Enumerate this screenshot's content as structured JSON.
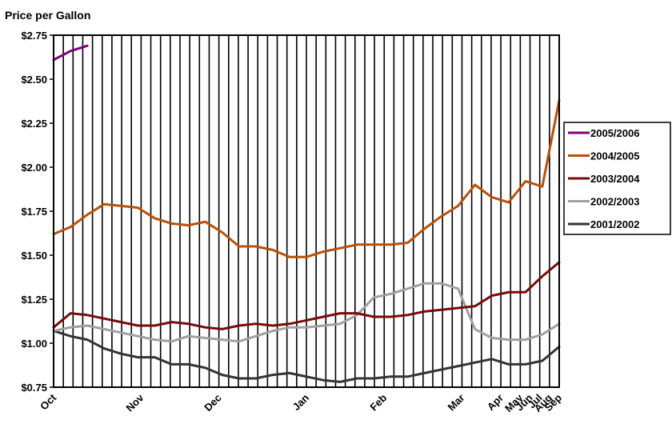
{
  "chart_data": {
    "type": "line",
    "title": "",
    "ylabel": "Price per Gallon",
    "xlabel": "",
    "ylim": [
      0.75,
      2.75
    ],
    "yticks": [
      "$0.75",
      "$1.00",
      "$1.25",
      "$1.50",
      "$1.75",
      "$2.00",
      "$2.25",
      "$2.50",
      "$2.75"
    ],
    "yticks_values": [
      0.75,
      1.0,
      1.25,
      1.5,
      1.75,
      2.0,
      2.25,
      2.5,
      2.75
    ],
    "x_weeks": 52,
    "x_tick_labels": [
      {
        "label": "Oct",
        "week": 0
      },
      {
        "label": "Nov",
        "week": 9
      },
      {
        "label": "Dec",
        "week": 17
      },
      {
        "label": "Jan",
        "week": 26
      },
      {
        "label": "Feb",
        "week": 34
      },
      {
        "label": "Mar",
        "week": 42
      },
      {
        "label": "Apr",
        "week": 46
      },
      {
        "label": "May",
        "week": 48
      },
      {
        "label": "Jun",
        "week": 49
      },
      {
        "label": "Jul",
        "week": 50
      },
      {
        "label": "Aug",
        "week": 51
      },
      {
        "label": "Sep",
        "week": 52
      }
    ],
    "grid": "vertical",
    "legend_position": "right",
    "series": [
      {
        "name": "2005/2006",
        "color": "#800080",
        "values": [
          2.61,
          2.66,
          2.69
        ]
      },
      {
        "name": "2004/2005",
        "color": "#B8510A",
        "values": [
          1.62,
          1.66,
          1.73,
          1.79,
          1.78,
          1.77,
          1.71,
          1.68,
          1.67,
          1.69,
          1.63,
          1.55,
          1.55,
          1.53,
          1.49,
          1.49,
          1.52,
          1.54,
          1.56,
          1.56,
          1.56,
          1.57,
          1.65,
          1.72,
          1.78,
          1.9,
          1.83,
          1.8,
          1.92,
          1.89,
          2.38
        ]
      },
      {
        "name": "2003/2004",
        "color": "#7A0A0A",
        "values": [
          1.09,
          1.17,
          1.16,
          1.14,
          1.12,
          1.1,
          1.1,
          1.12,
          1.11,
          1.09,
          1.08,
          1.1,
          1.11,
          1.1,
          1.11,
          1.13,
          1.15,
          1.17,
          1.17,
          1.15,
          1.15,
          1.16,
          1.18,
          1.19,
          1.2,
          1.21,
          1.27,
          1.29,
          1.29,
          1.38,
          1.46
        ]
      },
      {
        "name": "2002/2003",
        "color": "#A0A0A0",
        "values": [
          1.07,
          1.09,
          1.1,
          1.08,
          1.06,
          1.04,
          1.02,
          1.01,
          1.04,
          1.03,
          1.02,
          1.01,
          1.04,
          1.07,
          1.09,
          1.09,
          1.1,
          1.11,
          1.16,
          1.26,
          1.28,
          1.31,
          1.34,
          1.34,
          1.31,
          1.08,
          1.03,
          1.02,
          1.02,
          1.05,
          1.11
        ]
      },
      {
        "name": "2001/2002",
        "color": "#333333",
        "values": [
          1.07,
          1.04,
          1.02,
          0.97,
          0.94,
          0.92,
          0.92,
          0.88,
          0.88,
          0.86,
          0.82,
          0.8,
          0.8,
          0.82,
          0.83,
          0.81,
          0.79,
          0.78,
          0.8,
          0.8,
          0.81,
          0.81,
          0.83,
          0.85,
          0.87,
          0.89,
          0.91,
          0.88,
          0.88,
          0.9,
          0.98
        ]
      }
    ]
  }
}
